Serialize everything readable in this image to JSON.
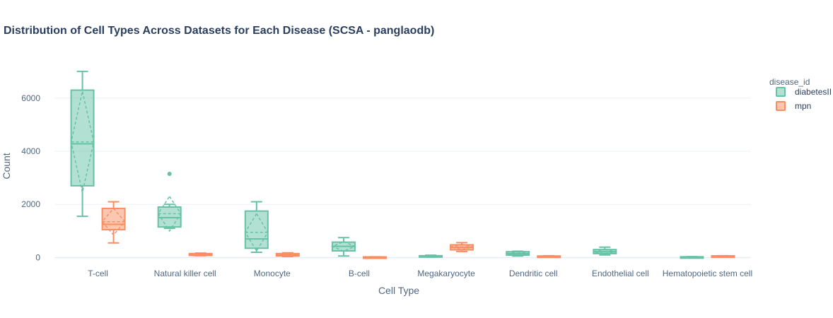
{
  "chart_data": {
    "type": "box",
    "title": "Distribution of Cell Types Across Datasets for Each Disease (SCSA - panglaodb)",
    "xlabel": "Cell Type",
    "ylabel": "Count",
    "yticks": [
      0,
      2000,
      4000,
      6000
    ],
    "ylim": [
      -200,
      7350
    ],
    "grid": true,
    "legend": {
      "title": "disease_id",
      "placement": "top-right"
    },
    "categories": [
      "T-cell",
      "Natural killer cell",
      "Monocyte",
      "B-cell",
      "Megakaryocyte",
      "Dendritic cell",
      "Endothelial cell",
      "Hematopoietic stem cell"
    ],
    "series": [
      {
        "name": "diabetesII",
        "color": "#66c2a5",
        "boxes": [
          {
            "min": 1550,
            "q1": 2700,
            "median": 4280,
            "q3": 6300,
            "max": 7000,
            "mean": 4350,
            "sd": 1900,
            "outliers": []
          },
          {
            "min": 1100,
            "q1": 1150,
            "median": 1500,
            "q3": 1900,
            "max": 2000,
            "mean": 1650,
            "sd": 650,
            "outliers": [
              3150
            ]
          },
          {
            "min": 200,
            "q1": 350,
            "median": 700,
            "q3": 1750,
            "max": 2100,
            "mean": 950,
            "sd": 700,
            "outliers": []
          },
          {
            "min": 60,
            "q1": 250,
            "median": 420,
            "q3": 580,
            "max": 750,
            "mean": 420,
            "sd": 180,
            "outliers": []
          },
          {
            "min": 20,
            "q1": 30,
            "median": 50,
            "q3": 70,
            "max": 90,
            "mean": 50,
            "sd": 20,
            "outliers": []
          },
          {
            "min": 60,
            "q1": 90,
            "median": 150,
            "q3": 220,
            "max": 240,
            "mean": 150,
            "sd": 60,
            "outliers": []
          },
          {
            "min": 100,
            "q1": 150,
            "median": 220,
            "q3": 300,
            "max": 390,
            "mean": 220,
            "sd": 80,
            "outliers": []
          },
          {
            "min": 10,
            "q1": 15,
            "median": 20,
            "q3": 30,
            "max": 35,
            "mean": 22,
            "sd": 8,
            "outliers": []
          }
        ]
      },
      {
        "name": "mpn",
        "color": "#fc8d62",
        "boxes": [
          {
            "min": 550,
            "q1": 1050,
            "median": 1250,
            "q3": 1850,
            "max": 2100,
            "mean": 1350,
            "sd": 500,
            "outliers": []
          },
          {
            "min": 70,
            "q1": 80,
            "median": 110,
            "q3": 150,
            "max": 170,
            "mean": 115,
            "sd": 30,
            "outliers": []
          },
          {
            "min": 40,
            "q1": 60,
            "median": 100,
            "q3": 150,
            "max": 180,
            "mean": 100,
            "sd": 40,
            "outliers": []
          },
          {
            "min": 5,
            "q1": 10,
            "median": 15,
            "q3": 25,
            "max": 30,
            "mean": 17,
            "sd": 8,
            "outliers": []
          },
          {
            "min": 230,
            "q1": 290,
            "median": 380,
            "q3": 480,
            "max": 560,
            "mean": 400,
            "sd": 100,
            "outliers": []
          },
          {
            "min": 20,
            "q1": 30,
            "median": 45,
            "q3": 60,
            "max": 70,
            "mean": 45,
            "sd": 15,
            "outliers": []
          },
          null,
          {
            "min": 35,
            "q1": 40,
            "median": 55,
            "q3": 65,
            "max": 70,
            "mean": 55,
            "sd": 10,
            "outliers": []
          }
        ]
      }
    ]
  }
}
